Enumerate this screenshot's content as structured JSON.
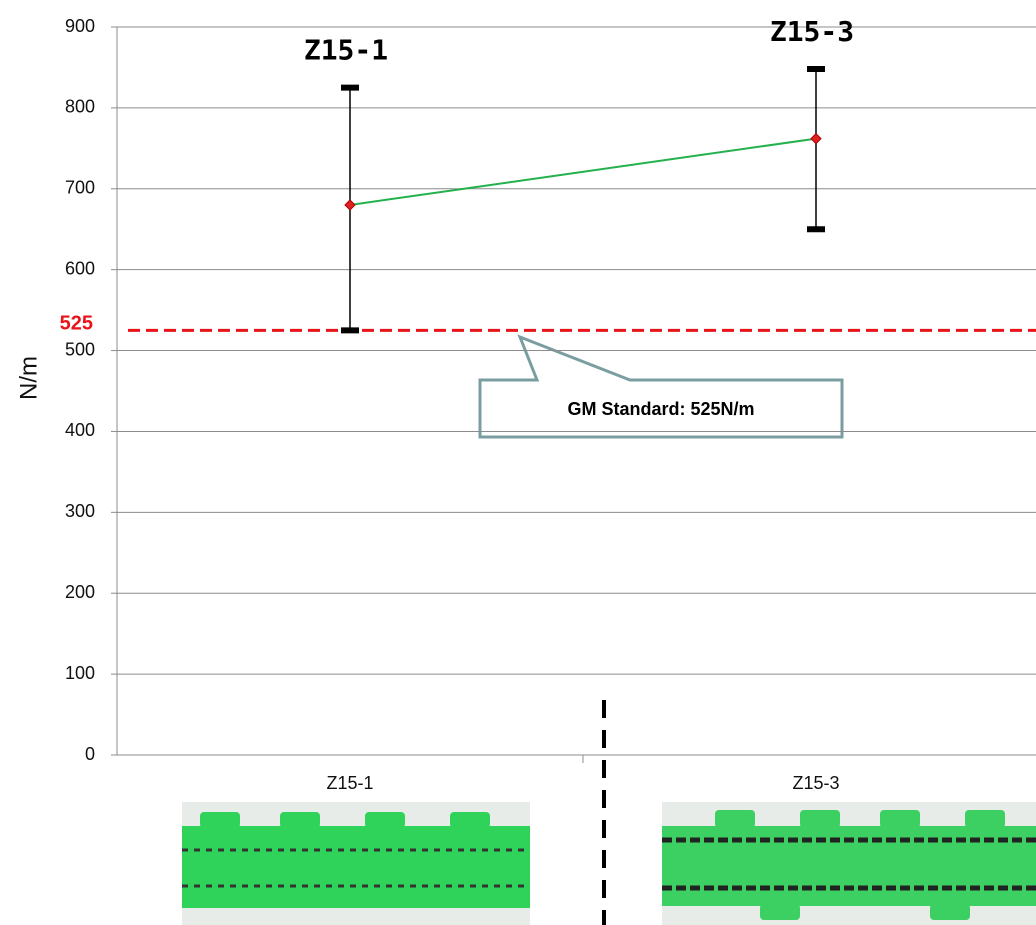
{
  "chart_data": {
    "type": "line",
    "y_label": "N/m",
    "categories": [
      "Z15-1",
      "Z15-3"
    ],
    "point_labels": [
      "Z15-1",
      "Z15-3"
    ],
    "values": [
      680,
      762
    ],
    "max": [
      825,
      848
    ],
    "min": [
      525,
      650
    ],
    "color": "#22b14c",
    "marker_color": "#e02020",
    "error_color": "#000000",
    "ylim": [
      0,
      900
    ],
    "yticks": [
      0,
      100,
      200,
      300,
      400,
      500,
      600,
      700,
      800,
      900
    ],
    "grid": true,
    "reference_line": {
      "value": 525,
      "color": "#e8141a",
      "callout": "GM Standard: 525N/m"
    }
  }
}
